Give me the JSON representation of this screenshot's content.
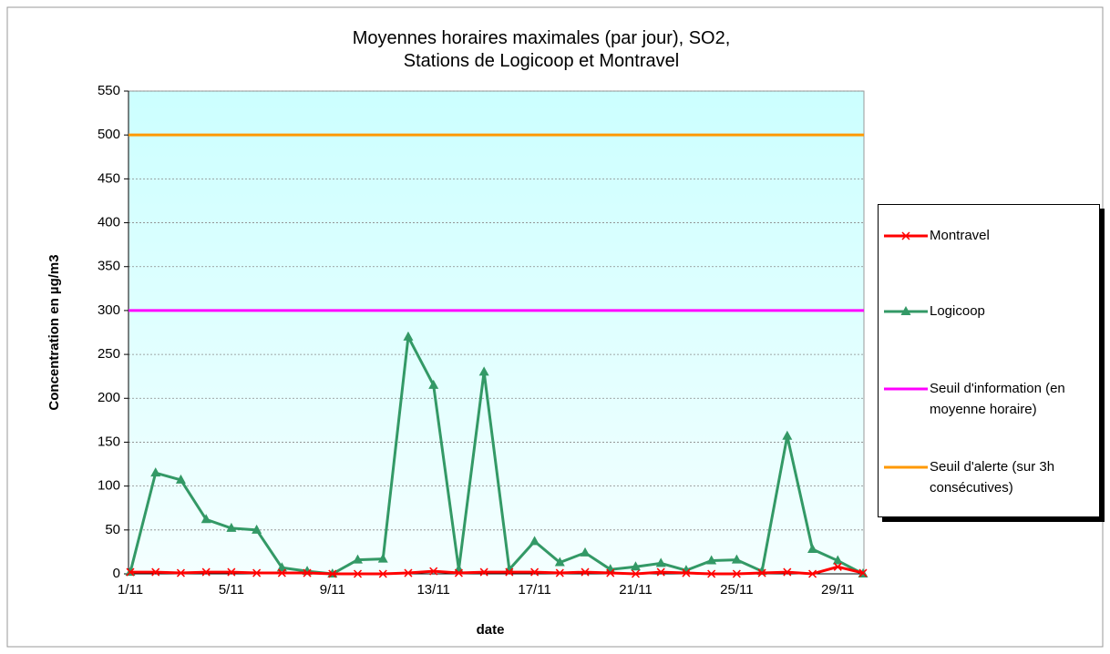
{
  "chart_data": {
    "type": "line",
    "title": "Moyennes horaires maximales (par jour), SO2, Stations de Logicoop et Montravel",
    "x_label": "date",
    "y_label": "Concentration en µg/m3",
    "categories": [
      "1/11",
      null,
      null,
      null,
      "5/11",
      null,
      null,
      null,
      "9/11",
      null,
      null,
      null,
      "13/11",
      null,
      null,
      null,
      "17/11",
      null,
      null,
      null,
      "21/11",
      null,
      null,
      null,
      "25/11",
      null,
      null,
      null,
      "29/11",
      null
    ],
    "series": [
      {
        "name": "Montravel",
        "color": "#ff0000",
        "marker": "x",
        "values": [
          2,
          2,
          1,
          2,
          2,
          1,
          1,
          1,
          0,
          0,
          0,
          1,
          3,
          1,
          2,
          2,
          2,
          1,
          2,
          1,
          0,
          2,
          1,
          0,
          0,
          1,
          2,
          0,
          8,
          1
        ]
      },
      {
        "name": "Logicoop",
        "color": "#339966",
        "marker": "triangle",
        "values": [
          2,
          115,
          107,
          62,
          52,
          50,
          7,
          3,
          0,
          16,
          17,
          270,
          215,
          5,
          230,
          5,
          37,
          13,
          24,
          5,
          8,
          12,
          4,
          15,
          16,
          3,
          157,
          28,
          15,
          0
        ]
      },
      {
        "name": "Seuil d'information (en moyenne horaire)",
        "color": "#ff00ff",
        "marker": "none",
        "values": [
          300,
          300,
          300,
          300,
          300,
          300,
          300,
          300,
          300,
          300,
          300,
          300,
          300,
          300,
          300,
          300,
          300,
          300,
          300,
          300,
          300,
          300,
          300,
          300,
          300,
          300,
          300,
          300,
          300,
          300
        ]
      },
      {
        "name": "Seuil d'alerte (sur 3h consécutives)",
        "color": "#ff9900",
        "marker": "none",
        "values": [
          500,
          500,
          500,
          500,
          500,
          500,
          500,
          500,
          500,
          500,
          500,
          500,
          500,
          500,
          500,
          500,
          500,
          500,
          500,
          500,
          500,
          500,
          500,
          500,
          500,
          500,
          500,
          500,
          500,
          500
        ]
      }
    ],
    "ylim": [
      0,
      550
    ],
    "yticks": [
      0,
      50,
      100,
      150,
      200,
      250,
      300,
      350,
      400,
      450,
      500,
      550
    ],
    "grid": true,
    "legend": "right"
  }
}
